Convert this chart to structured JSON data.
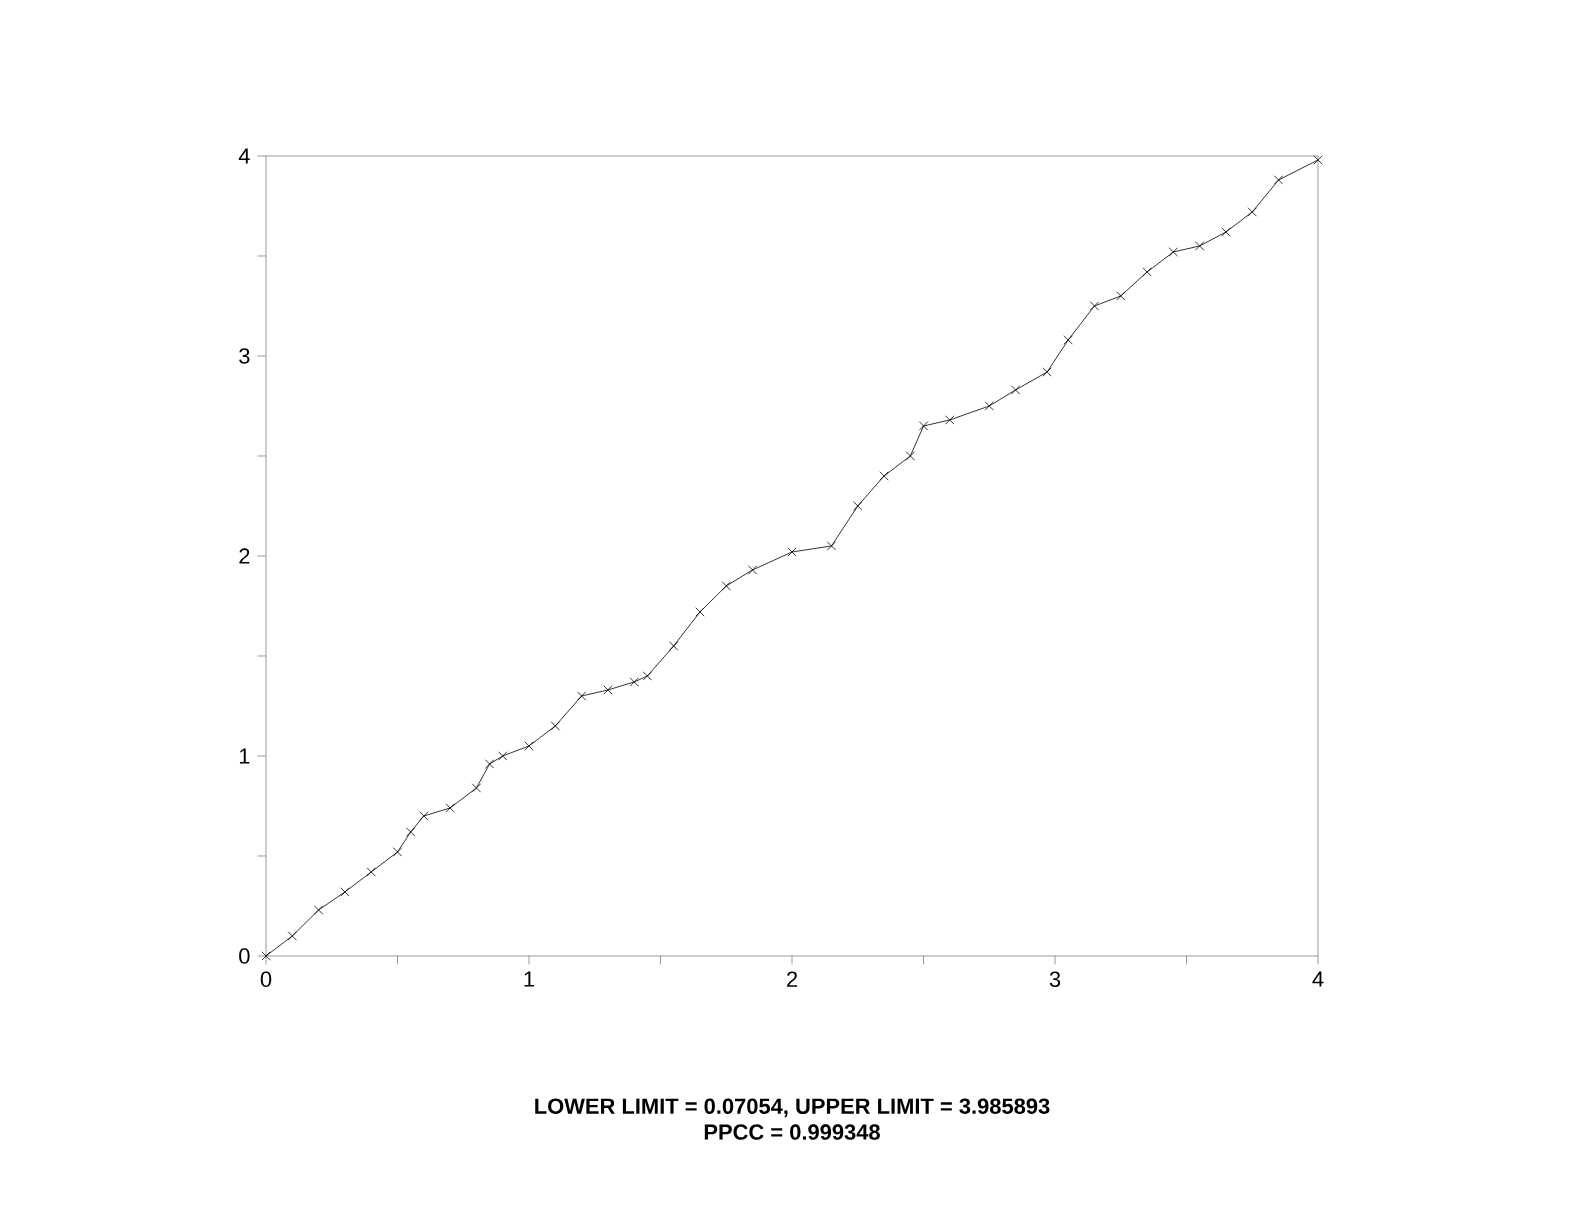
{
  "chart_data": {
    "type": "line",
    "marker": "cross",
    "x": [
      0,
      0.1,
      0.2,
      0.3,
      0.4,
      0.5,
      0.55,
      0.6,
      0.7,
      0.8,
      0.85,
      0.9,
      1.0,
      1.1,
      1.2,
      1.3,
      1.4,
      1.45,
      1.55,
      1.65,
      1.75,
      1.85,
      2.0,
      2.15,
      2.25,
      2.35,
      2.45,
      2.5,
      2.6,
      2.75,
      2.85,
      2.97,
      3.05,
      3.15,
      3.25,
      3.35,
      3.45,
      3.55,
      3.65,
      3.75,
      3.85,
      4.0
    ],
    "series": [
      {
        "color": "#000000",
        "values": [
          0,
          0.1,
          0.23,
          0.32,
          0.42,
          0.52,
          0.62,
          0.7,
          0.74,
          0.84,
          0.96,
          1.0,
          1.05,
          1.15,
          1.3,
          1.33,
          1.37,
          1.4,
          1.55,
          1.72,
          1.85,
          1.93,
          2.02,
          2.05,
          2.25,
          2.4,
          2.5,
          2.65,
          2.68,
          2.75,
          2.83,
          2.92,
          3.08,
          3.25,
          3.3,
          3.42,
          3.52,
          3.55,
          3.62,
          3.72,
          3.88,
          3.98
        ]
      }
    ],
    "xlim": [
      0,
      4
    ],
    "ylim": [
      0,
      4
    ],
    "xticks": [
      0,
      {
        "value": 0.5,
        "label": null
      },
      1,
      {
        "value": 1.5,
        "label": null
      },
      2,
      {
        "value": 2.5,
        "label": null
      },
      3,
      {
        "value": 3.5,
        "label": null
      },
      4
    ],
    "yticks": [
      0,
      {
        "value": 0.5,
        "label": null
      },
      1,
      {
        "value": 1.5,
        "label": null
      },
      2,
      {
        "value": 2.5,
        "label": null
      },
      3,
      {
        "value": 3.5,
        "label": null
      },
      4
    ],
    "annotations": [
      "LOWER LIMIT = 0.07054, UPPER LIMIT = 3.985893",
      "PPCC = 0.999348"
    ]
  }
}
